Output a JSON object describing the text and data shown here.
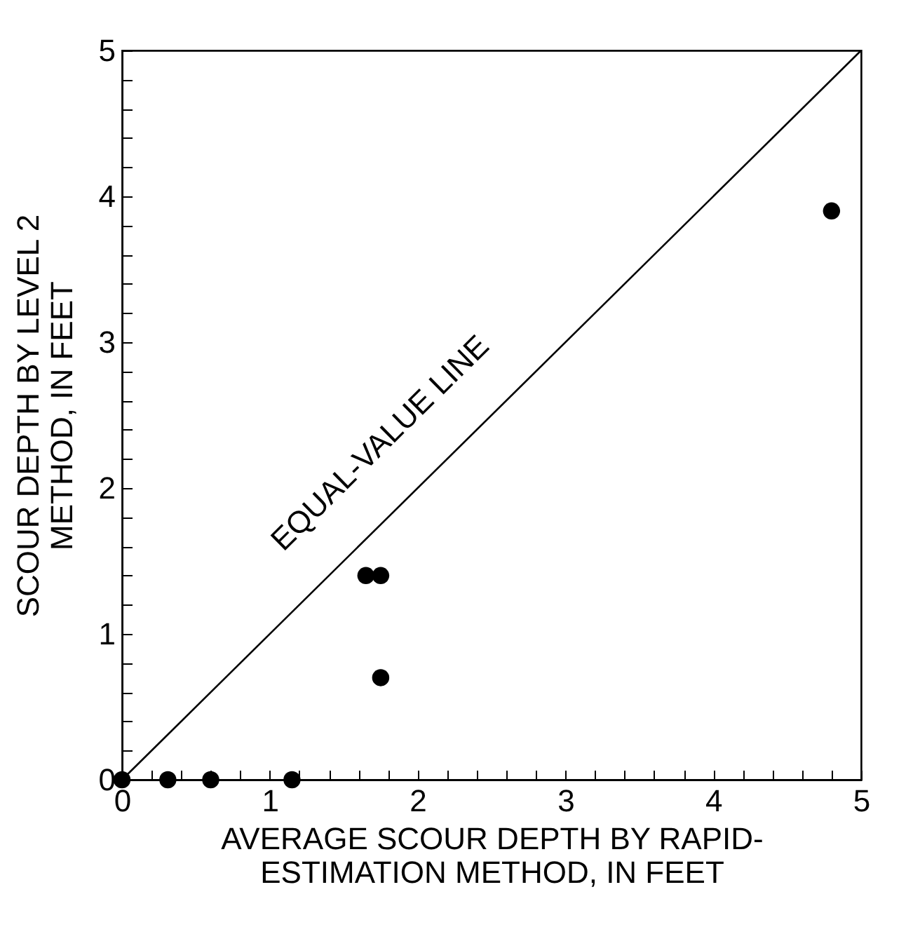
{
  "chart_data": {
    "type": "scatter",
    "xlabel": "AVERAGE SCOUR DEPTH BY RAPID-\nESTIMATION METHOD, IN FEET",
    "ylabel": "SCOUR DEPTH BY LEVEL 2\nMETHOD, IN FEET",
    "annotations": [
      "EQUAL-VALUE LINE"
    ],
    "xlim": [
      0,
      5
    ],
    "ylim": [
      0,
      5
    ],
    "xticks": [
      0,
      {
        "value": 0.2,
        "label": null
      },
      {
        "value": 0.4,
        "label": null
      },
      {
        "value": 0.6,
        "label": null
      },
      {
        "value": 0.8,
        "label": null
      },
      1,
      {
        "value": 1.2,
        "label": null
      },
      {
        "value": 1.4,
        "label": null
      },
      {
        "value": 1.6,
        "label": null
      },
      {
        "value": 1.8,
        "label": null
      },
      2,
      {
        "value": 2.2,
        "label": null
      },
      {
        "value": 2.4,
        "label": null
      },
      {
        "value": 2.6,
        "label": null
      },
      {
        "value": 2.8,
        "label": null
      },
      3,
      {
        "value": 3.2,
        "label": null
      },
      {
        "value": 3.4,
        "label": null
      },
      {
        "value": 3.6,
        "label": null
      },
      {
        "value": 3.8,
        "label": null
      },
      4,
      {
        "value": 4.2,
        "label": null
      },
      {
        "value": 4.4,
        "label": null
      },
      {
        "value": 4.6,
        "label": null
      },
      {
        "value": 4.8,
        "label": null
      },
      5
    ],
    "yticks": [
      0,
      {
        "value": 0.2,
        "label": null
      },
      {
        "value": 0.4,
        "label": null
      },
      {
        "value": 0.6,
        "label": null
      },
      {
        "value": 0.8,
        "label": null
      },
      1,
      {
        "value": 1.2,
        "label": null
      },
      {
        "value": 1.4,
        "label": null
      },
      {
        "value": 1.6,
        "label": null
      },
      {
        "value": 1.8,
        "label": null
      },
      2,
      {
        "value": 2.2,
        "label": null
      },
      {
        "value": 2.4,
        "label": null
      },
      {
        "value": 2.6,
        "label": null
      },
      {
        "value": 2.8,
        "label": null
      },
      3,
      {
        "value": 3.2,
        "label": null
      },
      {
        "value": 3.4,
        "label": null
      },
      {
        "value": 3.6,
        "label": null
      },
      {
        "value": 3.8,
        "label": null
      },
      4,
      {
        "value": 4.2,
        "label": null
      },
      {
        "value": 4.4,
        "label": null
      },
      {
        "value": 4.6,
        "label": null
      },
      {
        "value": 4.8,
        "label": null
      },
      5
    ],
    "grid": false,
    "marker": "circle",
    "series": [
      {
        "color": "#000000",
        "x": [
          0,
          0.31,
          0.6,
          1.15,
          1.65,
          1.75,
          1.75,
          4.8
        ],
        "values": [
          0,
          0,
          0,
          0,
          1.4,
          1.4,
          0.7,
          3.9
        ]
      },
      {
        "type": "line",
        "color": "#000000",
        "line_style": "solid",
        "marker": "none",
        "x": [
          0,
          5
        ],
        "values": [
          0,
          5
        ]
      }
    ]
  }
}
